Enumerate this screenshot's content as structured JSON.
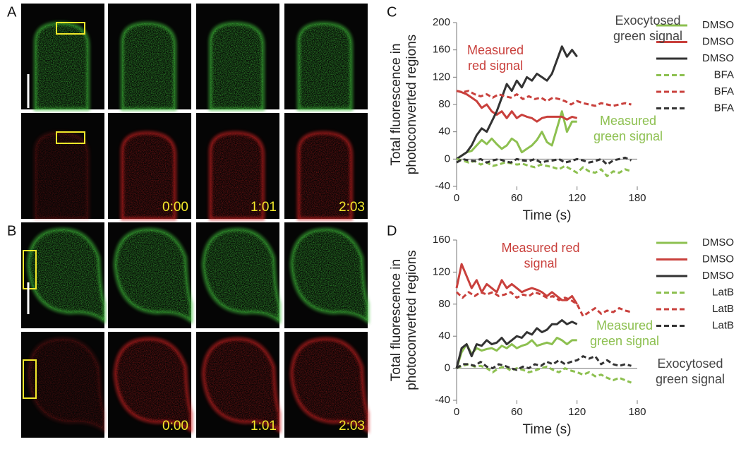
{
  "panels": {
    "labels": [
      "A",
      "B",
      "C",
      "D"
    ],
    "timestamps": [
      "0:00",
      "1:01",
      "2:03"
    ]
  },
  "chart_data": [
    {
      "type": "line",
      "ylabel": [
        "Total fluorescence in",
        "photoconverted regions"
      ],
      "xlabel": "Time  (s)",
      "xlim": [
        0,
        180
      ],
      "xticks": [
        0,
        60,
        120,
        180
      ],
      "ylim": [
        -40,
        200
      ],
      "yticks": [
        -40,
        0,
        40,
        80,
        120,
        160,
        200
      ],
      "annotations": [
        [
          "Exocytosed",
          "green signal"
        ],
        [
          "Measured",
          "red signal"
        ],
        [
          "Measured",
          "green signal"
        ]
      ],
      "series": [
        {
          "name": "DMSO",
          "color": "#8dc050",
          "dashed": false,
          "x": [
            0,
            5,
            10,
            15,
            20,
            25,
            30,
            35,
            40,
            45,
            50,
            55,
            60,
            65,
            70,
            75,
            80,
            85,
            90,
            95,
            100,
            105,
            110,
            115,
            120
          ],
          "values": [
            0,
            5,
            10,
            12,
            20,
            28,
            22,
            30,
            22,
            15,
            20,
            30,
            25,
            10,
            15,
            20,
            28,
            40,
            25,
            20,
            45,
            70,
            40,
            55,
            55
          ]
        },
        {
          "name": "DMSO",
          "color": "#c9403c",
          "dashed": false,
          "x": [
            0,
            5,
            10,
            15,
            20,
            25,
            30,
            35,
            40,
            45,
            50,
            55,
            60,
            65,
            70,
            75,
            80,
            85,
            90,
            95,
            100,
            105,
            110,
            115,
            120
          ],
          "values": [
            100,
            98,
            95,
            90,
            85,
            75,
            80,
            70,
            65,
            70,
            60,
            70,
            60,
            65,
            62,
            60,
            55,
            60,
            62,
            62,
            62,
            62,
            58,
            62,
            60
          ]
        },
        {
          "name": "DMSO",
          "color": "#333333",
          "dashed": false,
          "x": [
            0,
            5,
            10,
            15,
            20,
            25,
            30,
            35,
            40,
            45,
            50,
            55,
            60,
            65,
            70,
            75,
            80,
            85,
            90,
            95,
            100,
            105,
            110,
            115,
            120
          ],
          "values": [
            0,
            5,
            10,
            20,
            35,
            45,
            40,
            55,
            70,
            90,
            110,
            100,
            115,
            105,
            120,
            115,
            125,
            120,
            115,
            125,
            145,
            165,
            150,
            160,
            150
          ]
        },
        {
          "name": "BFA",
          "color": "#8dc050",
          "dashed": true,
          "x": [
            0,
            6,
            12,
            18,
            24,
            30,
            36,
            42,
            48,
            54,
            60,
            66,
            72,
            78,
            84,
            90,
            96,
            102,
            108,
            114,
            120,
            126,
            132,
            138,
            144,
            150,
            156,
            162,
            168,
            174
          ],
          "values": [
            0,
            -2,
            -5,
            -3,
            -8,
            -5,
            -10,
            -8,
            -5,
            -6,
            -8,
            -7,
            -10,
            -12,
            -8,
            -10,
            -12,
            -15,
            -10,
            -15,
            -20,
            -12,
            -18,
            -20,
            -15,
            -25,
            -18,
            -20,
            -15,
            -18
          ]
        },
        {
          "name": "BFA",
          "color": "#c9403c",
          "dashed": true,
          "x": [
            0,
            6,
            12,
            18,
            24,
            30,
            36,
            42,
            48,
            54,
            60,
            66,
            72,
            78,
            84,
            90,
            96,
            102,
            108,
            114,
            120,
            126,
            132,
            138,
            144,
            150,
            156,
            162,
            168,
            174
          ],
          "values": [
            100,
            98,
            100,
            95,
            92,
            95,
            90,
            95,
            92,
            90,
            95,
            88,
            92,
            88,
            90,
            85,
            90,
            88,
            85,
            80,
            85,
            82,
            80,
            78,
            82,
            80,
            78,
            80,
            82,
            80
          ]
        },
        {
          "name": "BFA",
          "color": "#333333",
          "dashed": true,
          "x": [
            0,
            6,
            12,
            18,
            24,
            30,
            36,
            42,
            48,
            54,
            60,
            66,
            72,
            78,
            84,
            90,
            96,
            102,
            108,
            114,
            120,
            126,
            132,
            138,
            144,
            150,
            156,
            162,
            168,
            174
          ],
          "values": [
            -5,
            0,
            -2,
            -3,
            0,
            -5,
            -2,
            0,
            -3,
            -5,
            0,
            -2,
            -3,
            0,
            -5,
            -3,
            -2,
            0,
            -5,
            -3,
            0,
            -2,
            -5,
            -3,
            0,
            -8,
            -2,
            0,
            2,
            -2
          ]
        }
      ]
    },
    {
      "type": "line",
      "ylabel": [
        "Total fluorescence in",
        "photoconverted regions"
      ],
      "xlabel": "Time  (s)",
      "xlim": [
        0,
        180
      ],
      "xticks": [
        0,
        60,
        120,
        180
      ],
      "ylim": [
        -40,
        160
      ],
      "yticks": [
        -40,
        0,
        40,
        80,
        120,
        160
      ],
      "annotations": [
        [
          "Measured red",
          "signal"
        ],
        [
          "Measured",
          "green signal"
        ],
        [
          "Exocytosed",
          "green signal"
        ]
      ],
      "series": [
        {
          "name": "DMSO",
          "color": "#8dc050",
          "dashed": false,
          "x": [
            0,
            5,
            10,
            15,
            20,
            25,
            30,
            35,
            40,
            45,
            50,
            55,
            60,
            65,
            70,
            75,
            80,
            85,
            90,
            95,
            100,
            105,
            110,
            115,
            120
          ],
          "values": [
            0,
            20,
            30,
            18,
            25,
            22,
            24,
            25,
            22,
            28,
            25,
            30,
            25,
            28,
            30,
            35,
            28,
            30,
            32,
            30,
            38,
            35,
            30,
            35,
            35
          ]
        },
        {
          "name": "DMSO",
          "color": "#c9403c",
          "dashed": false,
          "x": [
            0,
            5,
            10,
            15,
            20,
            25,
            30,
            35,
            40,
            45,
            50,
            55,
            60,
            65,
            70,
            75,
            80,
            85,
            90,
            95,
            100,
            105,
            110,
            115,
            120
          ],
          "values": [
            100,
            130,
            115,
            100,
            110,
            95,
            105,
            100,
            95,
            110,
            100,
            105,
            100,
            95,
            98,
            100,
            98,
            95,
            90,
            95,
            90,
            85,
            85,
            90,
            80
          ]
        },
        {
          "name": "DMSO",
          "color": "#333333",
          "dashed": false,
          "x": [
            0,
            5,
            10,
            15,
            20,
            25,
            30,
            35,
            40,
            45,
            50,
            55,
            60,
            65,
            70,
            75,
            80,
            85,
            90,
            95,
            100,
            105,
            110,
            115,
            120
          ],
          "values": [
            0,
            25,
            30,
            15,
            30,
            28,
            35,
            30,
            32,
            38,
            30,
            35,
            40,
            38,
            45,
            42,
            50,
            45,
            48,
            55,
            55,
            60,
            55,
            58,
            55
          ]
        },
        {
          "name": "LatB",
          "color": "#8dc050",
          "dashed": true,
          "x": [
            0,
            6,
            12,
            18,
            24,
            30,
            36,
            42,
            48,
            54,
            60,
            66,
            72,
            78,
            84,
            90,
            96,
            102,
            108,
            114,
            120,
            126,
            132,
            138,
            144,
            150,
            156,
            162,
            168,
            174
          ],
          "values": [
            0,
            3,
            5,
            2,
            3,
            0,
            -5,
            0,
            2,
            -3,
            0,
            -2,
            -5,
            -3,
            0,
            2,
            -2,
            -5,
            0,
            -3,
            -5,
            -8,
            -5,
            -10,
            -8,
            -12,
            -15,
            -12,
            -15,
            -18
          ]
        },
        {
          "name": "LatB",
          "color": "#c9403c",
          "dashed": true,
          "x": [
            0,
            6,
            12,
            18,
            24,
            30,
            36,
            42,
            48,
            54,
            60,
            66,
            72,
            78,
            84,
            90,
            96,
            102,
            108,
            114,
            120,
            126,
            132,
            138,
            144,
            150,
            156,
            162,
            168,
            174
          ],
          "values": [
            95,
            88,
            95,
            90,
            95,
            92,
            95,
            90,
            92,
            95,
            88,
            92,
            90,
            95,
            92,
            88,
            90,
            85,
            88,
            85,
            80,
            65,
            70,
            75,
            68,
            72,
            70,
            75,
            72,
            70
          ]
        },
        {
          "name": "LatB",
          "color": "#333333",
          "dashed": true,
          "x": [
            0,
            6,
            12,
            18,
            24,
            30,
            36,
            42,
            48,
            54,
            60,
            66,
            72,
            78,
            84,
            90,
            96,
            102,
            108,
            114,
            120,
            126,
            132,
            138,
            144,
            150,
            156,
            162,
            168,
            174
          ],
          "values": [
            0,
            5,
            5,
            3,
            8,
            2,
            0,
            5,
            3,
            0,
            -2,
            2,
            0,
            5,
            3,
            8,
            5,
            10,
            5,
            8,
            10,
            15,
            12,
            15,
            5,
            10,
            5,
            3,
            5,
            3
          ]
        }
      ]
    }
  ]
}
